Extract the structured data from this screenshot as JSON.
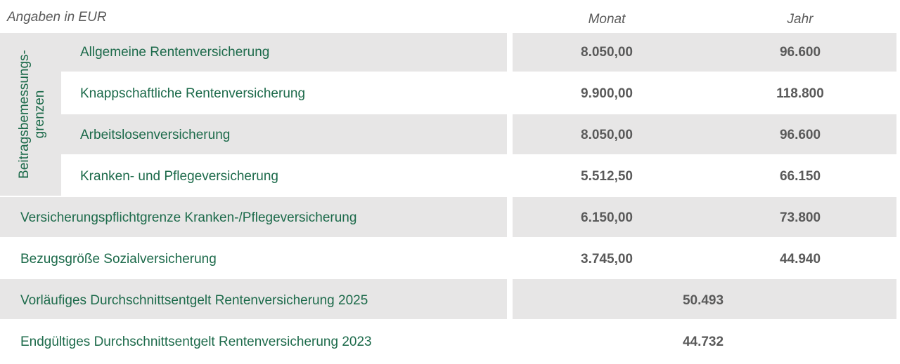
{
  "header": {
    "units": "Angaben in EUR",
    "monat": "Monat",
    "jahr": "Jahr"
  },
  "group_label": "Beitragsbemessungs-grenzen",
  "rows": [
    {
      "label": "Allgemeine Rentenversicherung",
      "monat": "8.050,00",
      "jahr": "96.600"
    },
    {
      "label": "Knappschaftliche Rentenversicherung",
      "monat": "9.900,00",
      "jahr": "118.800"
    },
    {
      "label": "Arbeitslosenversicherung",
      "monat": "8.050,00",
      "jahr": "96.600"
    },
    {
      "label": "Kranken- und Pflegeversicherung",
      "monat": "5.512,50",
      "jahr": "66.150"
    },
    {
      "label": "Versicherungspflichtgrenze Kranken-/Pflegeversicherung",
      "monat": "6.150,00",
      "jahr": "73.800"
    },
    {
      "label": "Bezugsgröße Sozialversicherung",
      "monat": "3.745,00",
      "jahr": "44.940"
    },
    {
      "label": "Vorläufiges Durchschnittsentgelt Rentenversicherung 2025",
      "value": "50.493"
    },
    {
      "label": "Endgültiges Durchschnittsentgelt Rentenversicherung 2023",
      "value": "44.732"
    }
  ]
}
